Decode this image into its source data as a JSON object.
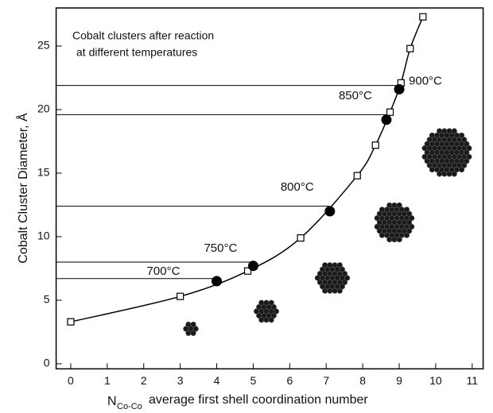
{
  "chart_data": {
    "type": "scatter",
    "x_label": {
      "symbol": "N",
      "subscript": "Co-Co",
      "text": "average first shell coordination number"
    },
    "y_label": "Cobalt Cluster Diameter, Å",
    "note": [
      "Cobalt clusters after reaction",
      "at different temperatures"
    ],
    "xlim": [
      -0.4,
      11.3
    ],
    "ylim": [
      -0.4,
      28
    ],
    "xticks": [
      0,
      1,
      2,
      3,
      4,
      5,
      6,
      7,
      8,
      9,
      10,
      11
    ],
    "yticks": [
      0,
      5,
      10,
      15,
      20,
      25
    ],
    "series": [
      {
        "marker": "square",
        "color": "#000000",
        "line": true,
        "x": [
          0,
          3,
          4.85,
          6.3,
          7.85,
          8.35,
          8.75,
          9.05,
          9.3,
          9.65
        ],
        "values": [
          3.3,
          5.3,
          7.3,
          9.9,
          14.8,
          17.2,
          19.8,
          22.1,
          24.8,
          27.3
        ]
      },
      {
        "marker": "circle",
        "color": "#000000",
        "line": false,
        "x": [
          4,
          5,
          7.1,
          8.65,
          9
        ],
        "values": [
          6.5,
          7.7,
          12.0,
          19.2,
          21.6
        ],
        "labels": [
          "700°C",
          "750°C",
          "800°C",
          "850°C",
          "900°C"
        ],
        "ref_lines": [
          6.7,
          8.0,
          12.4,
          19.6,
          21.9
        ]
      }
    ]
  }
}
